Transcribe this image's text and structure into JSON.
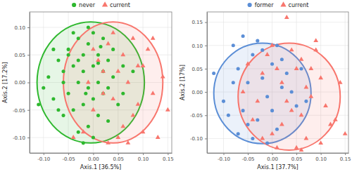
{
  "chart_data": [
    {
      "type": "scatter",
      "x_label": "Axis.1  [36.5%]",
      "y_label": "Axis.2  [17.2%]",
      "xlim": [
        -0.128,
        0.158
      ],
      "ylim": [
        -0.128,
        0.128
      ],
      "xticks": [
        {
          "value": -0.1,
          "label": "-0.10"
        },
        {
          "value": -0.05,
          "label": "-0.05"
        },
        {
          "value": 0,
          "label": "0.00"
        },
        {
          "value": 0.05,
          "label": "0.05"
        },
        {
          "value": 0.1,
          "label": "0.10"
        },
        {
          "value": 0.15,
          "label": "0.15"
        }
      ],
      "yticks": [
        {
          "value": -0.1,
          "label": "-0.10"
        },
        {
          "value": -0.05,
          "label": "-0.05"
        },
        {
          "value": 0,
          "label": "0.00"
        },
        {
          "value": 0.05,
          "label": "0.05"
        },
        {
          "value": 0.1,
          "label": "0.10"
        }
      ],
      "grid": true,
      "legend": "top",
      "series": [
        {
          "name": "never",
          "color": "#2eb82e",
          "marker": "circle",
          "x": [
            -0.09,
            -0.08,
            -0.07,
            -0.06,
            -0.05,
            -0.05,
            -0.04,
            -0.04,
            -0.03,
            -0.03,
            -0.02,
            -0.02,
            -0.02,
            -0.01,
            -0.01,
            -0.01,
            0.0,
            0.0,
            0.0,
            0.01,
            0.01,
            0.01,
            0.02,
            0.02,
            0.03,
            0.03,
            0.04,
            0.05,
            0.06,
            -0.06,
            -0.07,
            -0.04,
            -0.03,
            -0.05,
            0.0,
            0.02,
            -0.01,
            0.04,
            -0.08,
            -0.1,
            -0.11,
            -0.02,
            0.03,
            0.01,
            -0.03,
            0.06,
            0.08,
            -0.06,
            -0.015,
            0.015
          ],
          "values": [
            0.01,
            -0.03,
            0.04,
            0.02,
            -0.02,
            0.06,
            0.03,
            -0.05,
            0.0,
            0.08,
            0.02,
            -0.04,
            0.05,
            -0.01,
            0.07,
            -0.08,
            0.03,
            -0.03,
            0.09,
            0.0,
            0.05,
            -0.06,
            0.02,
            -0.02,
            0.04,
            -0.07,
            0.01,
            -0.04,
            0.03,
            -0.06,
            -0.05,
            0.09,
            -0.09,
            0.05,
            -0.1,
            0.08,
            0.1,
            0.06,
            0.06,
            -0.01,
            -0.04,
            -0.11,
            -0.01,
            0.035,
            0.04,
            -0.02,
            0.02,
            0.0,
            -0.02,
            0.065
          ],
          "ellipse": {
            "cx": -0.005,
            "cy": 0.0,
            "rx": 0.108,
            "ry": 0.11
          }
        },
        {
          "name": "current",
          "color": "#f8766d",
          "marker": "triangle",
          "x": [
            0.02,
            0.04,
            0.06,
            0.08,
            0.1,
            0.12,
            0.14,
            0.05,
            0.03,
            0.07,
            0.09,
            0.11,
            0.0,
            -0.02,
            0.01,
            0.04,
            0.06,
            0.13,
            0.15,
            0.08,
            0.02,
            -0.01,
            0.05,
            0.1,
            0.03,
            0.07,
            -0.04,
            0.09,
            0.12,
            0.0
          ],
          "values": [
            0.02,
            -0.03,
            0.05,
            -0.06,
            0.03,
            -0.02,
            0.01,
            -0.1,
            0.07,
            0.0,
            -0.04,
            0.06,
            -0.05,
            -0.09,
            0.04,
            0.09,
            -0.08,
            -0.1,
            -0.05,
            0.08,
            -0.02,
            0.0,
            0.02,
            -0.09,
            -0.11,
            -0.11,
            -0.1,
            0.03,
            0.08,
            0.06
          ],
          "ellipse": {
            "cx": 0.04,
            "cy": 0.0,
            "rx": 0.1,
            "ry": 0.11
          }
        }
      ]
    },
    {
      "type": "scatter",
      "x_label": "Axis.1  [37.7%]",
      "y_label": "Axis.2  [17%]",
      "xlim": [
        -0.134,
        0.157
      ],
      "ylim": [
        -0.131,
        0.172
      ],
      "xticks": [
        {
          "value": -0.1,
          "label": "-0.10"
        },
        {
          "value": -0.05,
          "label": "-0.05"
        },
        {
          "value": 0,
          "label": "0.00"
        },
        {
          "value": 0.05,
          "label": "0.05"
        },
        {
          "value": 0.1,
          "label": "0.10"
        },
        {
          "value": 0.15,
          "label": "0.15"
        }
      ],
      "yticks": [
        {
          "value": -0.1,
          "label": "-0.10"
        },
        {
          "value": -0.05,
          "label": "-0.05"
        },
        {
          "value": 0,
          "label": "0.00"
        },
        {
          "value": 0.05,
          "label": "0.05"
        },
        {
          "value": 0.1,
          "label": "0.10"
        },
        {
          "value": 0.15,
          "label": "0.15"
        }
      ],
      "grid": true,
      "legend": "top",
      "series": [
        {
          "name": "former",
          "color": "#5b8ed6",
          "marker": "circle",
          "x": [
            -0.12,
            -0.1,
            -0.08,
            -0.07,
            -0.06,
            -0.05,
            -0.04,
            -0.03,
            -0.02,
            -0.01,
            0.0,
            0.01,
            0.02,
            0.03,
            0.05,
            -0.09,
            -0.06,
            -0.04,
            -0.02,
            0.0,
            0.02,
            0.04,
            -0.05,
            -0.03,
            -0.08,
            -0.01,
            0.01,
            0.06,
            -0.07,
            0.07
          ],
          "values": [
            0.04,
            -0.02,
            0.1,
            0.05,
            -0.04,
            0.02,
            0.08,
            -0.06,
            0.03,
            -0.01,
            0.06,
            -0.08,
            0.01,
            0.04,
            -0.03,
            -0.05,
            0.12,
            -0.1,
            0.09,
            -0.04,
            0.07,
            0.0,
            -0.07,
            0.11,
            0.02,
            -0.11,
            0.1,
            0.05,
            -0.09,
            -0.02
          ],
          "ellipse": {
            "cx": -0.02,
            "cy": -0.003,
            "rx": 0.1,
            "ry": 0.108
          }
        },
        {
          "name": "current",
          "color": "#f8766d",
          "marker": "triangle",
          "x": [
            -0.06,
            -0.04,
            -0.02,
            0.0,
            0.02,
            0.04,
            0.06,
            0.08,
            0.1,
            0.12,
            0.14,
            -0.01,
            0.01,
            0.03,
            0.05,
            0.07,
            0.09,
            0.11,
            0.13,
            0.0,
            0.02,
            0.04,
            0.06,
            -0.03,
            0.08,
            0.1,
            0.03,
            0.05,
            -0.05,
            0.07,
            0.15,
            0.01,
            0.09,
            -0.02,
            0.06
          ],
          "values": [
            0.0,
            -0.06,
            0.04,
            -0.09,
            0.02,
            -0.04,
            0.07,
            -0.01,
            0.03,
            -0.07,
            0.02,
            0.08,
            -0.12,
            -0.02,
            0.05,
            -0.1,
            0.09,
            -0.03,
            -0.06,
            0.1,
            -0.07,
            0.09,
            -0.05,
            -0.02,
            0.05,
            -0.11,
            0.16,
            -0.12,
            0.06,
            0.01,
            -0.09,
            0.05,
            0.11,
            -0.1,
            -0.125
          ],
          "ellipse": {
            "cx": 0.035,
            "cy": -0.01,
            "rx": 0.105,
            "ry": 0.115
          }
        }
      ]
    }
  ]
}
